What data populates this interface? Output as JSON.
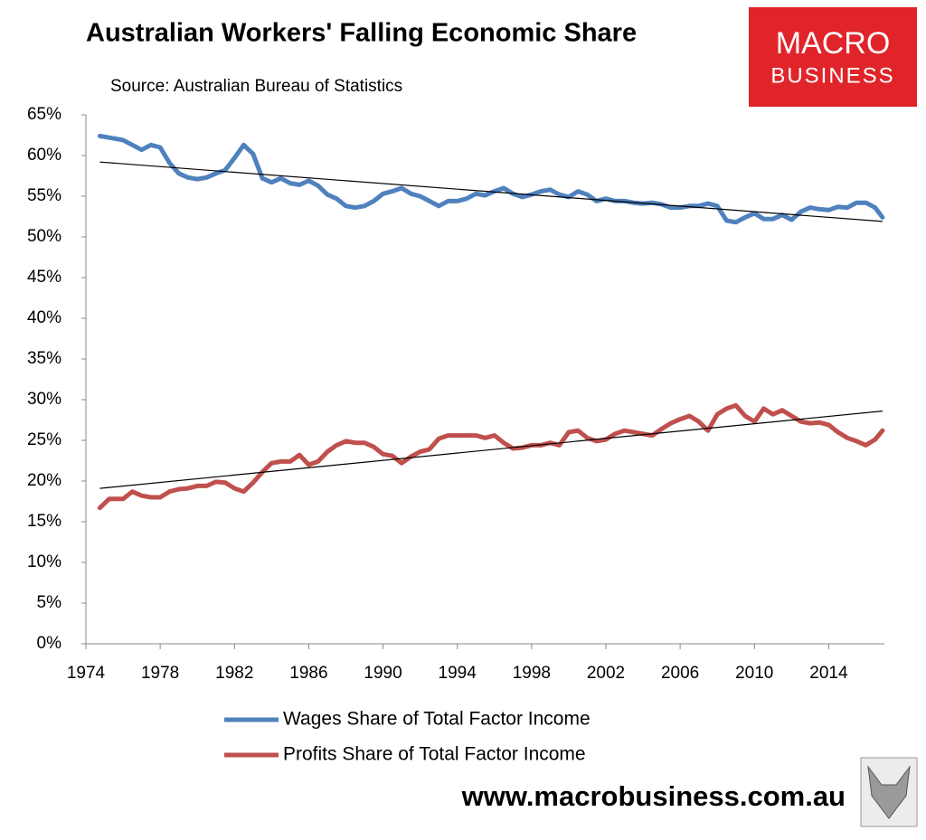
{
  "chart_data": {
    "type": "line",
    "title": "Australian Workers' Falling Economic Share",
    "subtitle": "Source: Australian Bureau of Statistics",
    "logo": {
      "line1": "MACRO",
      "line2": "BUSINESS"
    },
    "footer": "www.macrobusiness.com.au",
    "x": [
      1974.75,
      1975.25,
      1976,
      1976.5,
      1977,
      1977.5,
      1978,
      1978.5,
      1979,
      1979.5,
      1980,
      1980.5,
      1981,
      1981.5,
      1982,
      1982.5,
      1983,
      1983.5,
      1984,
      1984.5,
      1985,
      1985.5,
      1986,
      1986.5,
      1987,
      1987.5,
      1988,
      1988.5,
      1989,
      1989.5,
      1990,
      1990.5,
      1991,
      1991.5,
      1992,
      1992.5,
      1993,
      1993.5,
      1994,
      1994.5,
      1995,
      1995.5,
      1996,
      1996.5,
      1997,
      1997.5,
      1998,
      1998.5,
      1999,
      1999.5,
      2000,
      2000.5,
      2001,
      2001.5,
      2002,
      2002.5,
      2003,
      2003.5,
      2004,
      2004.5,
      2005,
      2005.5,
      2006,
      2006.5,
      2007,
      2007.5,
      2008,
      2008.5,
      2009,
      2009.5,
      2010,
      2010.5,
      2011,
      2011.5,
      2012,
      2012.5,
      2013,
      2013.5,
      2014,
      2014.5,
      2015,
      2015.5,
      2016,
      2016.5,
      2016.9
    ],
    "series": [
      {
        "name": "Wages Share of Total Factor Income",
        "color": "#4f81bd",
        "values": [
          62.4,
          62.2,
          61.9,
          61.3,
          60.7,
          61.3,
          61.0,
          59.1,
          57.8,
          57.3,
          57.1,
          57.3,
          57.8,
          58.2,
          59.7,
          61.3,
          60.2,
          57.2,
          56.7,
          57.2,
          56.6,
          56.4,
          56.9,
          56.3,
          55.2,
          54.7,
          53.8,
          53.6,
          53.8,
          54.4,
          55.3,
          55.6,
          56.0,
          55.3,
          55.0,
          54.4,
          53.8,
          54.4,
          54.4,
          54.7,
          55.3,
          55.1,
          55.6,
          56.0,
          55.3,
          54.9,
          55.2,
          55.6,
          55.8,
          55.2,
          54.9,
          55.6,
          55.2,
          54.4,
          54.7,
          54.4,
          54.4,
          54.2,
          54.1,
          54.2,
          54.0,
          53.6,
          53.6,
          53.8,
          53.8,
          54.1,
          53.8,
          52.0,
          51.8,
          52.4,
          52.9,
          52.2,
          52.2,
          52.7,
          52.1,
          53.1,
          53.6,
          53.4,
          53.3,
          53.7,
          53.6,
          54.2,
          54.2,
          53.6,
          52.4
        ]
      },
      {
        "name": "Profits Share of Total Factor Income",
        "color": "#c0504d",
        "values": [
          16.7,
          17.8,
          17.8,
          18.7,
          18.2,
          18.0,
          18.0,
          18.7,
          19.0,
          19.1,
          19.4,
          19.4,
          19.9,
          19.8,
          19.1,
          18.7,
          19.8,
          21.1,
          22.2,
          22.4,
          22.4,
          23.2,
          22.0,
          22.4,
          23.6,
          24.4,
          24.9,
          24.7,
          24.7,
          24.2,
          23.3,
          23.1,
          22.2,
          23.0,
          23.6,
          23.9,
          25.2,
          25.6,
          25.6,
          25.6,
          25.6,
          25.3,
          25.6,
          24.7,
          24.0,
          24.1,
          24.4,
          24.4,
          24.7,
          24.4,
          26.0,
          26.2,
          25.3,
          24.9,
          25.1,
          25.8,
          26.2,
          26.0,
          25.8,
          25.6,
          26.4,
          27.1,
          27.6,
          28.0,
          27.3,
          26.2,
          28.2,
          28.9,
          29.3,
          28.0,
          27.3,
          28.9,
          28.2,
          28.7,
          28.0,
          27.3,
          27.1,
          27.2,
          26.9,
          26.0,
          25.3,
          24.9,
          24.4,
          25.1,
          26.2
        ]
      }
    ],
    "trendlines": [
      {
        "color": "#000000",
        "x": [
          1974.75,
          2016.9
        ],
        "values": [
          59.2,
          51.9
        ]
      },
      {
        "color": "#000000",
        "x": [
          1974.75,
          2016.9
        ],
        "values": [
          19.1,
          28.6
        ]
      }
    ],
    "xlim": [
      1974,
      2017
    ],
    "xticks": [
      1974,
      1978,
      1982,
      1986,
      1990,
      1994,
      1998,
      2002,
      2006,
      2010,
      2014
    ],
    "ylim": [
      0,
      65
    ],
    "yticks": [
      {
        "value": 0,
        "label": "0%"
      },
      {
        "value": 5,
        "label": "5%"
      },
      {
        "value": 10,
        "label": "10%"
      },
      {
        "value": 15,
        "label": "15%"
      },
      {
        "value": 20,
        "label": "20%"
      },
      {
        "value": 25,
        "label": "25%"
      },
      {
        "value": 30,
        "label": "30%"
      },
      {
        "value": 35,
        "label": "35%"
      },
      {
        "value": 40,
        "label": "40%"
      },
      {
        "value": 45,
        "label": "45%"
      },
      {
        "value": 50,
        "label": "50%"
      },
      {
        "value": 55,
        "label": "55%"
      },
      {
        "value": 60,
        "label": "60%"
      },
      {
        "value": 65,
        "label": "65%"
      }
    ],
    "grid": false,
    "legend": "bottom"
  }
}
